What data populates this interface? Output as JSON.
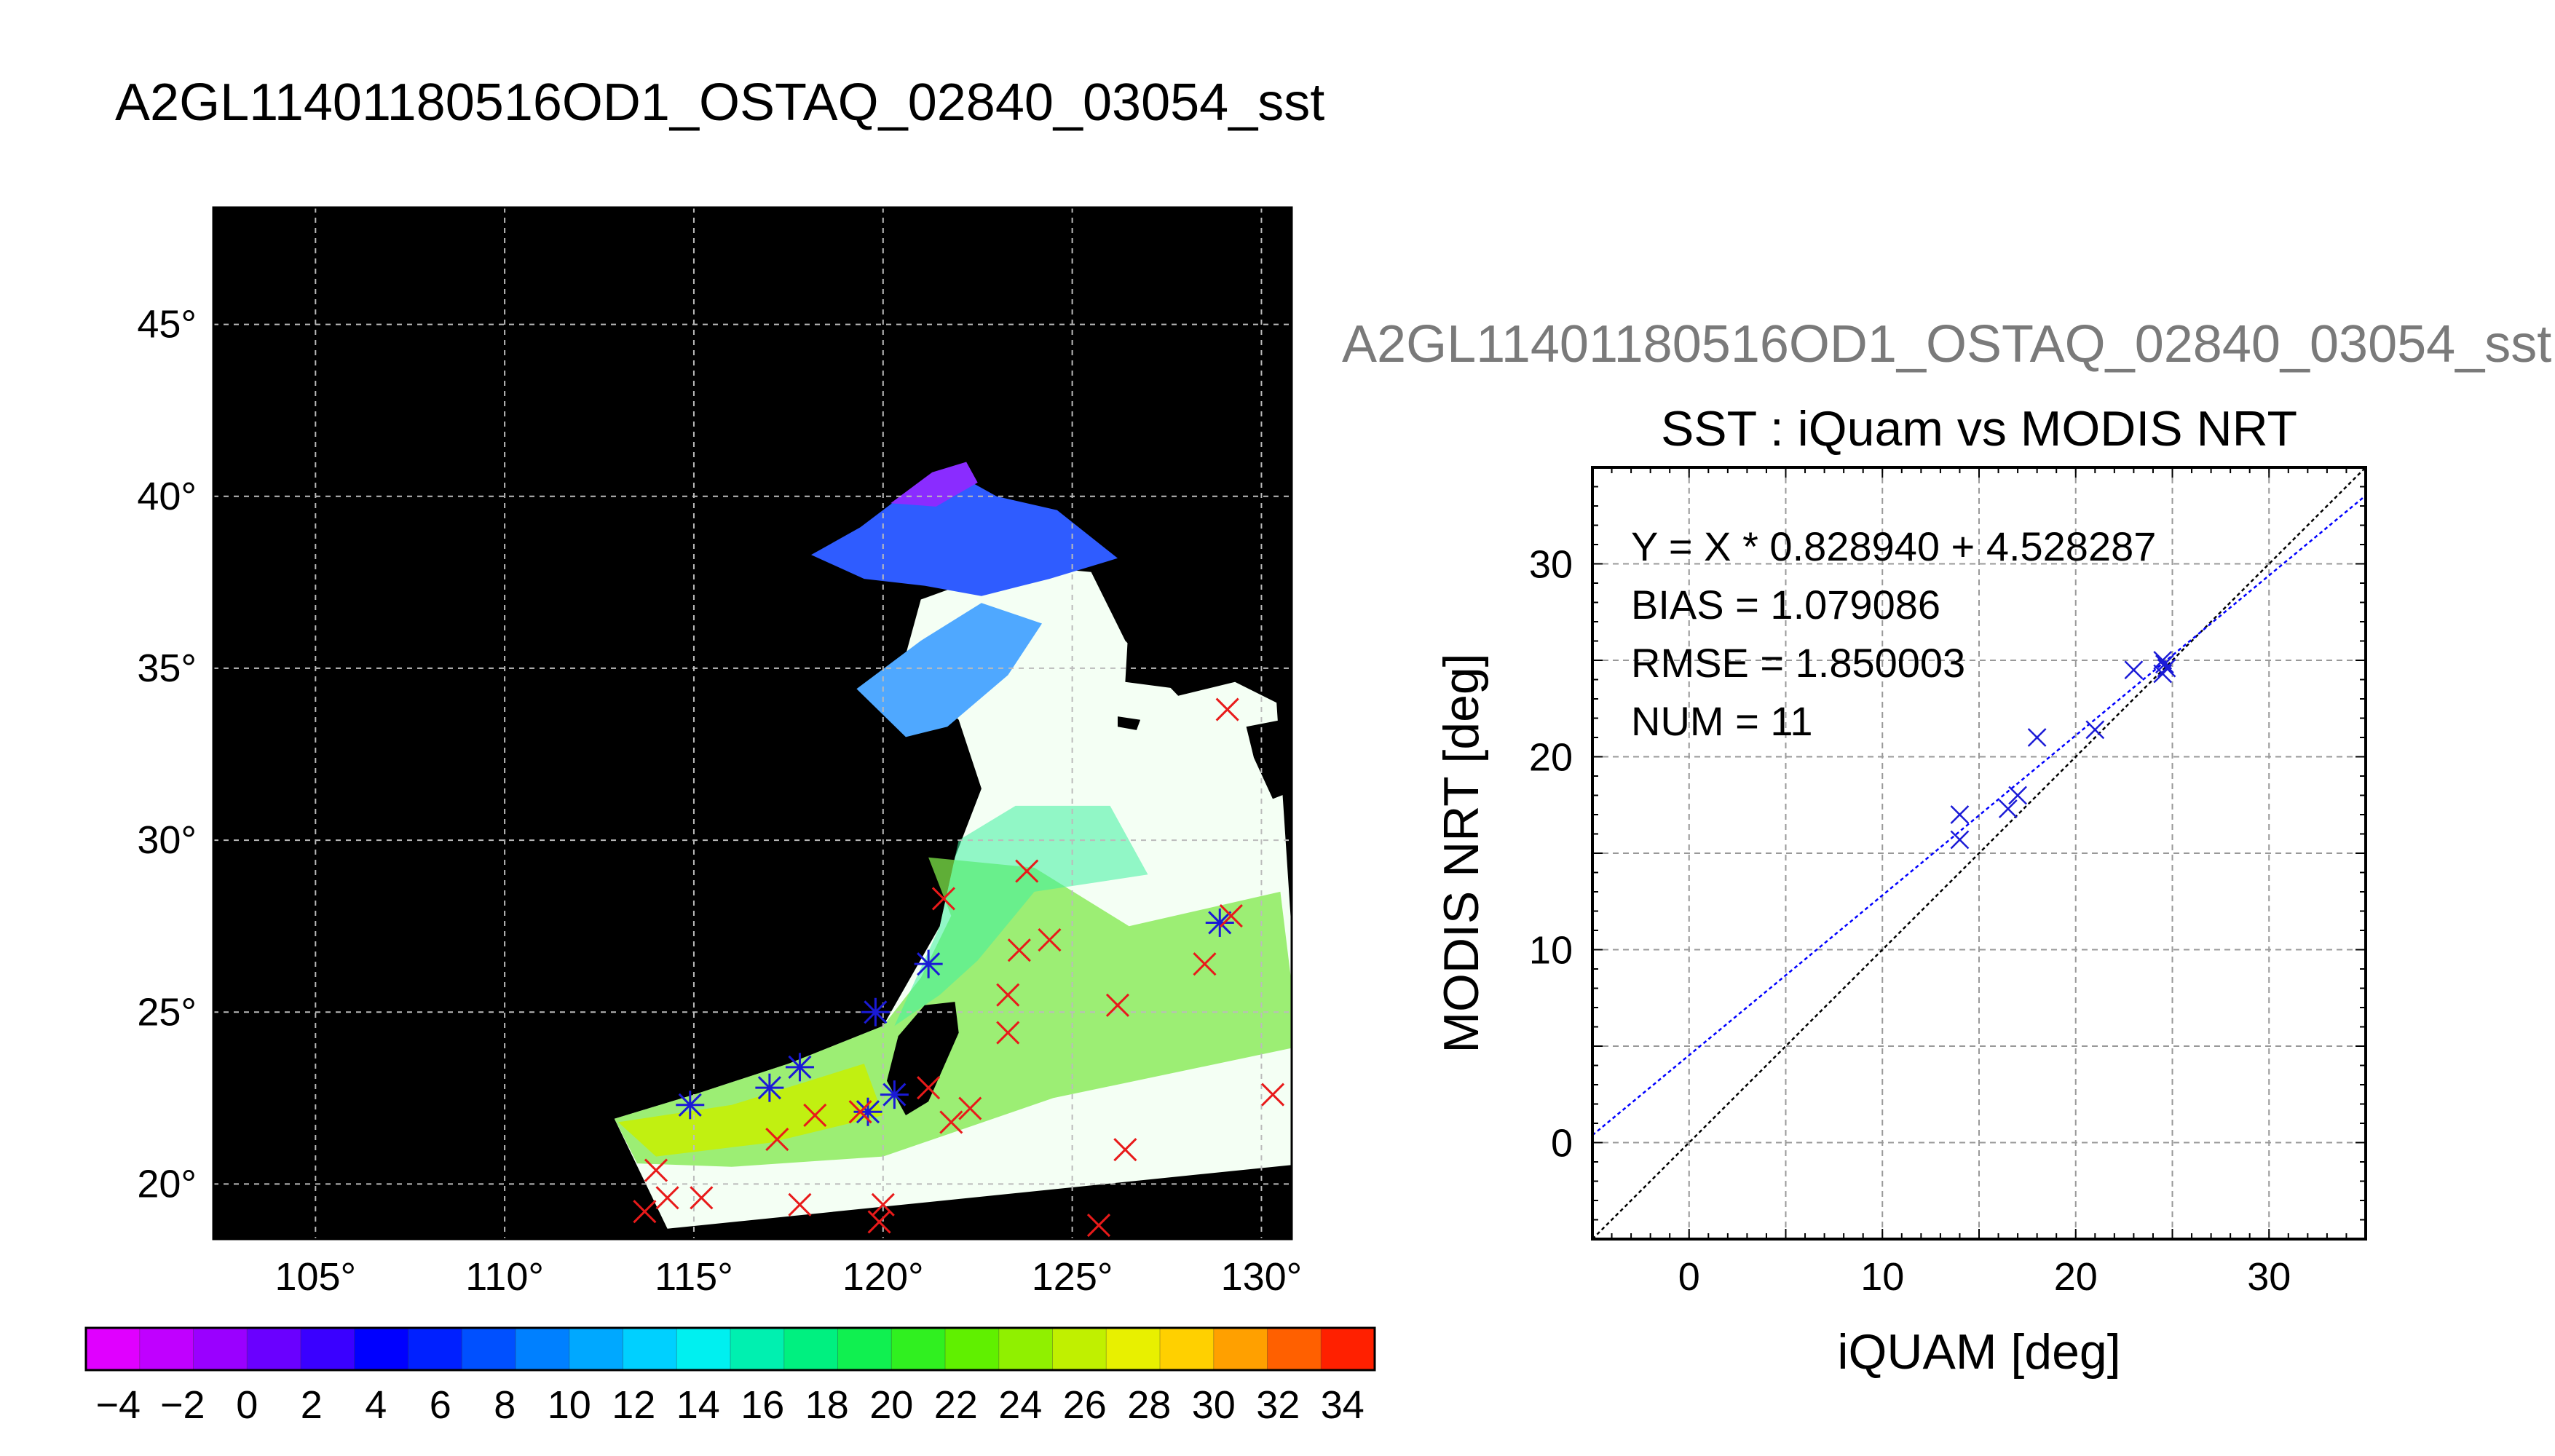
{
  "map_title": "A2GL11401180516OD1_OSTAQ_02840_03054_sst",
  "scatter_suptitle": "A2GL11401180516OD1_OSTAQ_02840_03054_sst",
  "colors": {
    "line_fit": "#0000ff",
    "line_identity": "#000000",
    "marker_blue": "#1a1ad6",
    "marker_red": "#e81a1a",
    "map_bg": "#000000"
  },
  "chart_data": [
    {
      "type": "heatmap",
      "title": "A2GL11401180516OD1_OSTAQ_02840_03054_sst",
      "x_ticks": [
        "105°",
        "110°",
        "115°",
        "120°",
        "125°",
        "130°"
      ],
      "y_ticks": [
        "45°",
        "40°",
        "35°",
        "30°",
        "25°",
        "20°"
      ],
      "x_values": [
        105,
        110,
        115,
        120,
        125,
        130
      ],
      "y_values": [
        45,
        40,
        35,
        30,
        25,
        20
      ],
      "xlim": [
        102.3,
        130.8
      ],
      "ylim": [
        18.4,
        48.4
      ],
      "grid": true,
      "colorbar": {
        "ticks": [
          "−4",
          "−2",
          "0",
          "2",
          "4",
          "6",
          "8",
          "10",
          "12",
          "14",
          "16",
          "18",
          "20",
          "22",
          "24",
          "26",
          "28",
          "30",
          "32",
          "34"
        ],
        "range": [
          -5,
          35
        ],
        "colors": [
          "#e000ff",
          "#c000ff",
          "#9a00ff",
          "#6a00ff",
          "#3a00ff",
          "#0000ff",
          "#0020ff",
          "#0050ff",
          "#0080ff",
          "#00a8ff",
          "#00d0ff",
          "#00f0f0",
          "#00f0b0",
          "#00f080",
          "#10f050",
          "#30f020",
          "#60f000",
          "#90f000",
          "#c0f000",
          "#e8f000",
          "#ffd000",
          "#ffa000",
          "#ff6000",
          "#ff2000"
        ]
      },
      "markers": [
        {
          "lon": 114.9,
          "lat": 22.3,
          "kind": "asterisk",
          "color": "blue"
        },
        {
          "lon": 117.0,
          "lat": 22.8,
          "kind": "asterisk",
          "color": "blue"
        },
        {
          "lon": 117.8,
          "lat": 23.4,
          "kind": "asterisk",
          "color": "blue"
        },
        {
          "lon": 119.6,
          "lat": 22.1,
          "kind": "asterisk",
          "color": "blue"
        },
        {
          "lon": 119.8,
          "lat": 25.0,
          "kind": "asterisk",
          "color": "blue"
        },
        {
          "lon": 121.2,
          "lat": 26.4,
          "kind": "asterisk",
          "color": "blue"
        },
        {
          "lon": 120.3,
          "lat": 22.6,
          "kind": "asterisk",
          "color": "blue"
        },
        {
          "lon": 128.9,
          "lat": 27.6,
          "kind": "asterisk",
          "color": "blue"
        },
        {
          "lon": 129.1,
          "lat": 33.8,
          "kind": "cross",
          "color": "red"
        },
        {
          "lon": 121.6,
          "lat": 28.3,
          "kind": "cross",
          "color": "red"
        },
        {
          "lon": 123.8,
          "lat": 29.1,
          "kind": "cross",
          "color": "red"
        },
        {
          "lon": 123.6,
          "lat": 26.8,
          "kind": "cross",
          "color": "red"
        },
        {
          "lon": 124.4,
          "lat": 27.1,
          "kind": "cross",
          "color": "red"
        },
        {
          "lon": 123.3,
          "lat": 25.5,
          "kind": "cross",
          "color": "red"
        },
        {
          "lon": 123.3,
          "lat": 24.4,
          "kind": "cross",
          "color": "red"
        },
        {
          "lon": 126.2,
          "lat": 25.2,
          "kind": "cross",
          "color": "red"
        },
        {
          "lon": 128.5,
          "lat": 26.4,
          "kind": "cross",
          "color": "red"
        },
        {
          "lon": 129.2,
          "lat": 27.8,
          "kind": "cross",
          "color": "red"
        },
        {
          "lon": 130.3,
          "lat": 22.6,
          "kind": "cross",
          "color": "red"
        },
        {
          "lon": 121.2,
          "lat": 22.8,
          "kind": "cross",
          "color": "red"
        },
        {
          "lon": 121.8,
          "lat": 21.8,
          "kind": "cross",
          "color": "red"
        },
        {
          "lon": 122.3,
          "lat": 22.2,
          "kind": "cross",
          "color": "red"
        },
        {
          "lon": 126.4,
          "lat": 21.0,
          "kind": "cross",
          "color": "red"
        },
        {
          "lon": 125.7,
          "lat": 18.8,
          "kind": "cross",
          "color": "red"
        },
        {
          "lon": 118.2,
          "lat": 22.0,
          "kind": "cross",
          "color": "red"
        },
        {
          "lon": 117.2,
          "lat": 21.3,
          "kind": "cross",
          "color": "red"
        },
        {
          "lon": 117.8,
          "lat": 19.4,
          "kind": "cross",
          "color": "red"
        },
        {
          "lon": 119.4,
          "lat": 22.1,
          "kind": "cross",
          "color": "red"
        },
        {
          "lon": 120.0,
          "lat": 19.4,
          "kind": "cross",
          "color": "red"
        },
        {
          "lon": 119.9,
          "lat": 18.9,
          "kind": "cross",
          "color": "red"
        },
        {
          "lon": 114.0,
          "lat": 20.4,
          "kind": "cross",
          "color": "red"
        },
        {
          "lon": 114.3,
          "lat": 19.6,
          "kind": "cross",
          "color": "red"
        },
        {
          "lon": 113.7,
          "lat": 19.2,
          "kind": "cross",
          "color": "red"
        },
        {
          "lon": 115.2,
          "lat": 19.6,
          "kind": "cross",
          "color": "red"
        }
      ]
    },
    {
      "type": "scatter",
      "title": "SST : iQuam vs MODIS NRT",
      "xlabel": "iQUAM [deg]",
      "ylabel": "MODIS NRT [deg]",
      "xlim": [
        -5,
        35
      ],
      "ylim": [
        -5,
        35
      ],
      "x_ticks": [
        "0",
        "10",
        "20",
        "30"
      ],
      "y_ticks": [
        "0",
        "10",
        "20",
        "30"
      ],
      "grid": true,
      "annotations": [
        "Y = X * 0.828940 + 4.528287",
        "BIAS = 1.079086",
        "RMSE = 1.850003",
        "NUM = 11"
      ],
      "fit": {
        "slope": 0.82894,
        "intercept": 4.528287
      },
      "series": [
        {
          "x": [
            14.0,
            14.0,
            16.5,
            17.0,
            18.0,
            21.0,
            23.0,
            24.5,
            24.5,
            24.6,
            24.7
          ],
          "y": [
            17.0,
            15.7,
            17.3,
            18.0,
            21.0,
            21.4,
            24.5,
            25.0,
            24.3,
            24.8,
            24.6
          ]
        }
      ]
    }
  ]
}
